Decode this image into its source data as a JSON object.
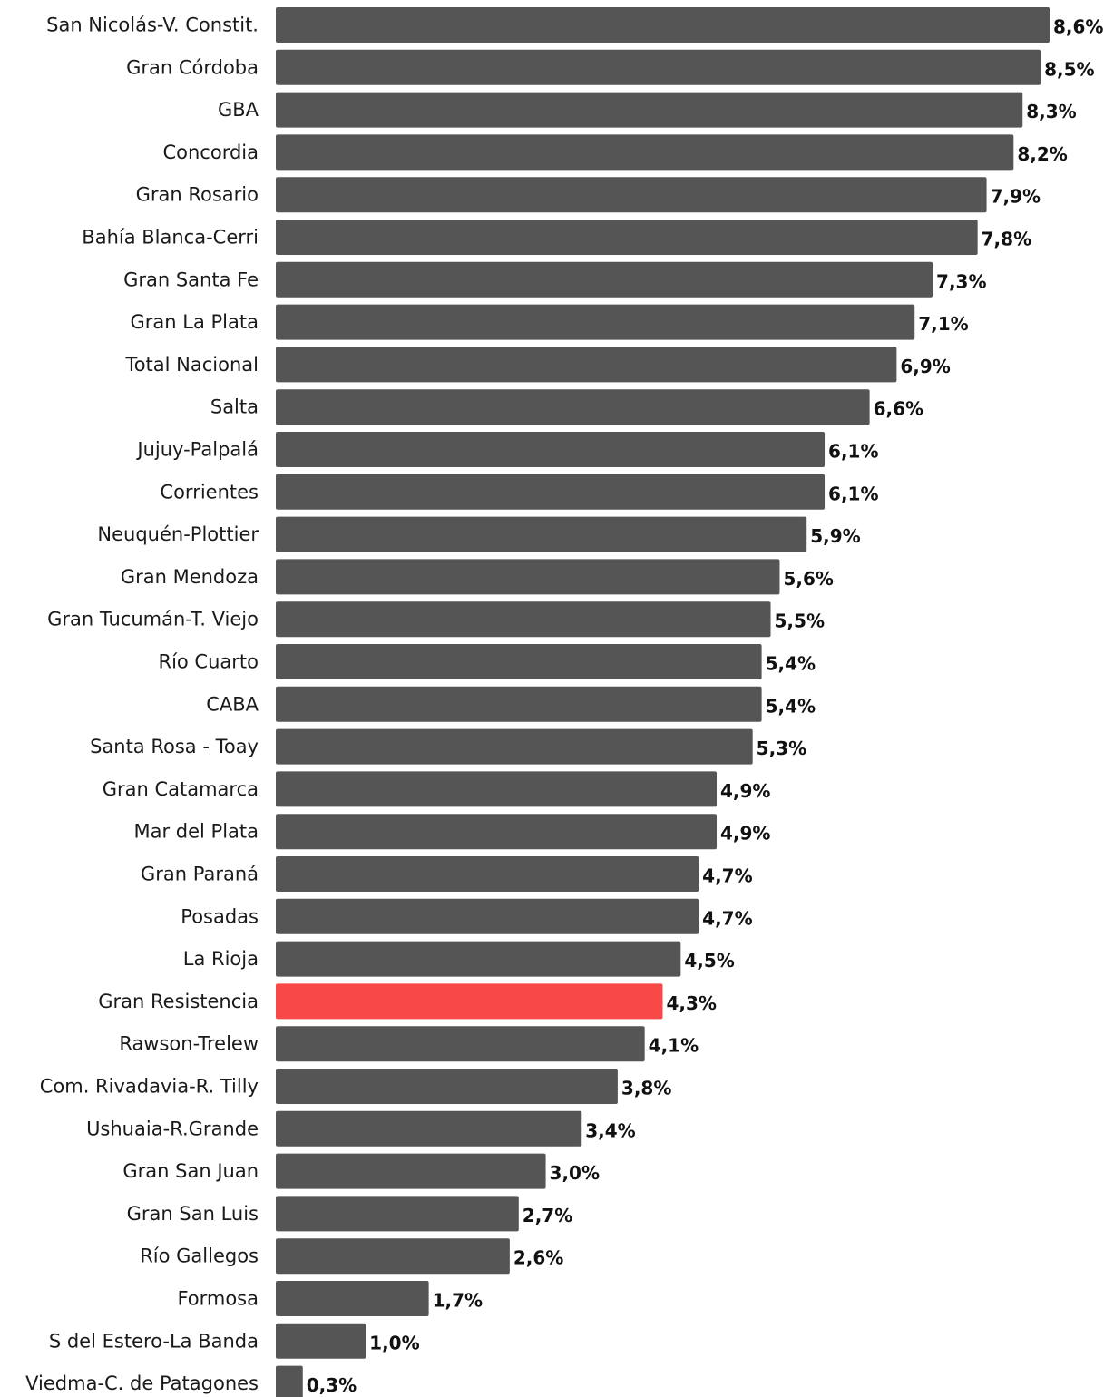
{
  "chart_data": {
    "type": "bar",
    "orientation": "horizontal",
    "categories": [
      "San Nicolás-V. Constit.",
      "Gran Córdoba",
      "GBA",
      "Concordia",
      "Gran Rosario",
      "Bahía Blanca-Cerri",
      "Gran Santa Fe",
      "Gran La Plata",
      "Total Nacional",
      "Salta",
      "Jujuy-Palpalá",
      "Corrientes",
      "Neuquén-Plottier",
      "Gran Mendoza",
      "Gran Tucumán-T. Viejo",
      "Río Cuarto",
      "CABA",
      "Santa Rosa - Toay",
      "Gran Catamarca",
      "Mar del Plata",
      "Gran Paraná",
      "Posadas",
      "La Rioja",
      "Gran Resistencia",
      "Rawson-Trelew",
      "Com. Rivadavia-R. Tilly",
      "Ushuaia-R.Grande",
      "Gran San Juan",
      "Gran San Luis",
      "Río Gallegos",
      "Formosa",
      "S del Estero-La Banda",
      "Viedma-C. de Patagones"
    ],
    "values": [
      8.6,
      8.5,
      8.3,
      8.2,
      7.9,
      7.8,
      7.3,
      7.1,
      6.9,
      6.6,
      6.1,
      6.1,
      5.9,
      5.6,
      5.5,
      5.4,
      5.4,
      5.3,
      4.9,
      4.9,
      4.7,
      4.7,
      4.5,
      4.3,
      4.1,
      3.8,
      3.4,
      3.0,
      2.7,
      2.6,
      1.7,
      1.0,
      0.3
    ],
    "value_labels": [
      "8,6%",
      "8,5%",
      "8,3%",
      "8,2%",
      "7,9%",
      "7,8%",
      "7,3%",
      "7,1%",
      "6,9%",
      "6,6%",
      "6,1%",
      "6,1%",
      "5,9%",
      "5,6%",
      "5,5%",
      "5,4%",
      "5,4%",
      "5,3%",
      "4,9%",
      "4,9%",
      "4,7%",
      "4,7%",
      "4,5%",
      "4,3%",
      "4,1%",
      "3,8%",
      "3,4%",
      "3,0%",
      "2,7%",
      "2,6%",
      "1,7%",
      "1,0%",
      "0,3%"
    ],
    "highlight_category": "Gran Resistencia",
    "colors": {
      "bar": "#555555",
      "highlight": "#f94848",
      "category_text": "#1a1a1a",
      "value_text": "#111111"
    },
    "xlim": [
      0,
      8.6
    ],
    "grid": false,
    "legend": "none"
  }
}
